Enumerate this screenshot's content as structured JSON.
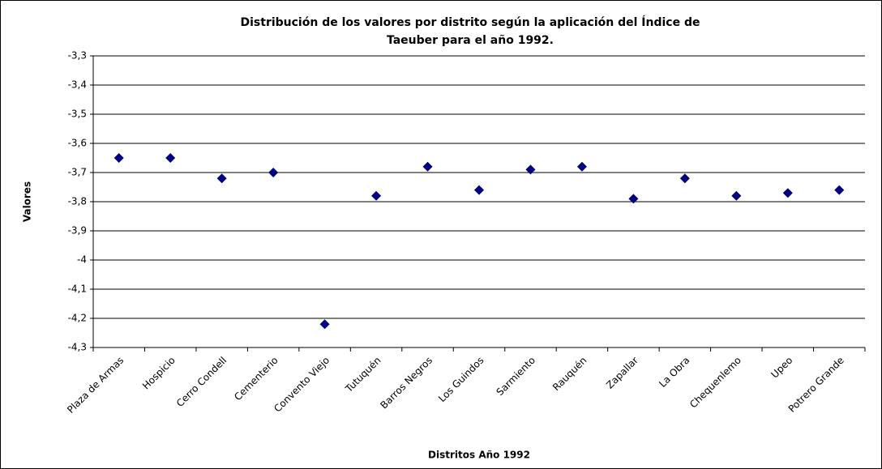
{
  "chart_data": {
    "type": "scatter",
    "title": [
      "Distribución de los valores por distrito según la aplicación del Índice de",
      "Taeuber para el año 1992."
    ],
    "xlabel": "Distritos Año 1992",
    "ylabel": "Valores",
    "categories": [
      "Plaza de Armas",
      "Hospicio",
      "Cerro Condell",
      "Cementerio",
      "Convento Viejo",
      "Tutuquén",
      "Barros Negros",
      "Los Guindos",
      "Sarmiento",
      "Rauquén",
      "Zapallar",
      "La Obra",
      "Chequenlemo",
      "Upeo",
      "Potrero Grande"
    ],
    "values": [
      -3.65,
      -3.65,
      -3.72,
      -3.7,
      -4.22,
      -3.78,
      -3.68,
      -3.76,
      -3.69,
      -3.68,
      -3.79,
      -3.72,
      -3.78,
      -3.77,
      -3.76
    ],
    "color": "#000080",
    "ylim": [
      -4.3,
      -3.3
    ],
    "yticks": [
      {
        "value": -4.3,
        "label": "-4,3"
      },
      {
        "value": -4.2,
        "label": "-4,2"
      },
      {
        "value": -4.1,
        "label": "-4,1"
      },
      -4,
      {
        "value": -3.9,
        "label": "-3,9"
      },
      {
        "value": -3.8,
        "label": "-3,8"
      },
      {
        "value": -3.7,
        "label": "-3,7"
      },
      {
        "value": -3.6,
        "label": "-3,6"
      },
      {
        "value": -3.5,
        "label": "-3,5"
      },
      {
        "value": -3.4,
        "label": "-3,4"
      },
      {
        "value": -3.3,
        "label": "-3,3"
      }
    ],
    "grid": true
  }
}
